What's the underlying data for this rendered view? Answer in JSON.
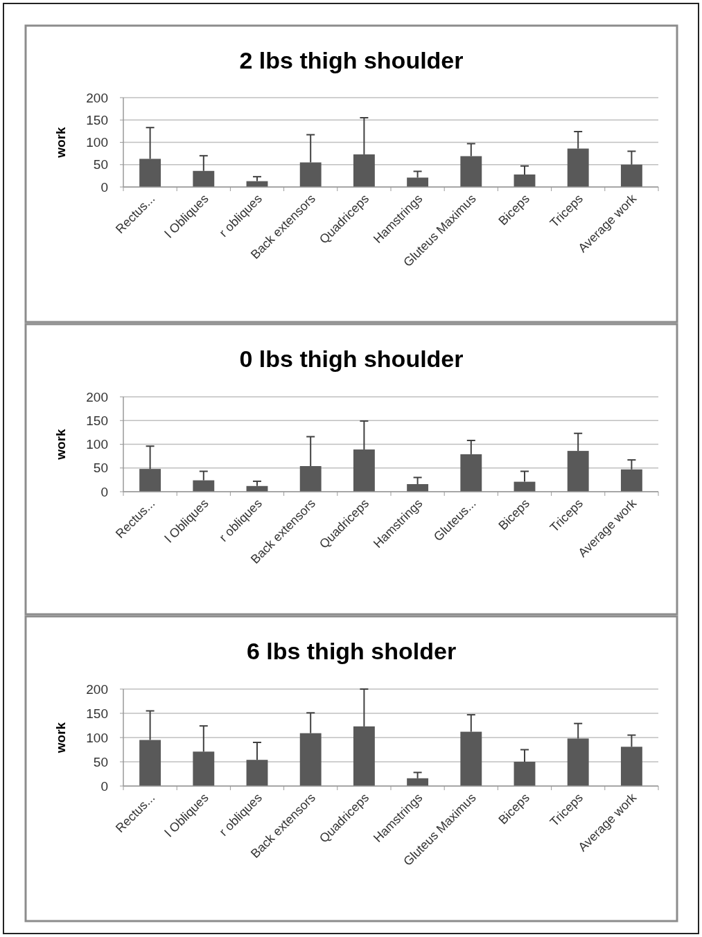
{
  "chart_data": [
    {
      "type": "bar",
      "title": "2 lbs thigh shoulder",
      "ylabel": "work",
      "categories": [
        "Rectus...",
        "l Obliques",
        "r obliques",
        "Back extensors",
        "Quadriceps",
        "Hamstrings",
        "Gluteus Maximus",
        "Biceps",
        "Triceps",
        "Average work"
      ],
      "values": [
        63,
        36,
        13,
        55,
        73,
        21,
        69,
        28,
        86,
        50
      ],
      "errors": [
        [
          63,
          133
        ],
        [
          36,
          70
        ],
        [
          13,
          23
        ],
        [
          55,
          117
        ],
        [
          73,
          155
        ],
        [
          21,
          35
        ],
        [
          69,
          97
        ],
        [
          28,
          47
        ],
        [
          86,
          124
        ],
        [
          50,
          80
        ]
      ],
      "color": "#595959",
      "ylim": [
        0,
        200
      ],
      "yticks": [
        0,
        50,
        100,
        150,
        200
      ],
      "grid": "y"
    },
    {
      "type": "bar",
      "title": "0 lbs thigh shoulder",
      "ylabel": "work",
      "categories": [
        "Rectus...",
        "l Obliques",
        "r obliques",
        "Back extensors",
        "Quadriceps",
        "Hamstrings",
        "Gluteus...",
        "Biceps",
        "Triceps",
        "Average work"
      ],
      "values": [
        48,
        24,
        12,
        54,
        89,
        16,
        79,
        21,
        86,
        47
      ],
      "errors": [
        [
          48,
          96
        ],
        [
          24,
          43
        ],
        [
          12,
          22
        ],
        [
          54,
          116
        ],
        [
          89,
          149
        ],
        [
          16,
          30
        ],
        [
          79,
          108
        ],
        [
          21,
          43
        ],
        [
          86,
          123
        ],
        [
          47,
          67
        ]
      ],
      "color": "#595959",
      "ylim": [
        0,
        200
      ],
      "yticks": [
        0,
        50,
        100,
        150,
        200
      ],
      "grid": "y"
    },
    {
      "type": "bar",
      "title": "6 lbs thigh sholder",
      "ylabel": "work",
      "categories": [
        "Rectus...",
        "l Obliques",
        "r obliques",
        "Back extensors",
        "Quadriceps",
        "Hamstrings",
        "Gluteus Maximus",
        "Biceps",
        "Triceps",
        "Average work"
      ],
      "values": [
        95,
        71,
        54,
        109,
        123,
        16,
        112,
        50,
        98,
        81
      ],
      "errors": [
        [
          95,
          155
        ],
        [
          71,
          124
        ],
        [
          54,
          90
        ],
        [
          109,
          151
        ],
        [
          123,
          200
        ],
        [
          16,
          28
        ],
        [
          112,
          147
        ],
        [
          50,
          75
        ],
        [
          98,
          129
        ],
        [
          81,
          105
        ]
      ],
      "color": "#595959",
      "ylim": [
        0,
        200
      ],
      "yticks": [
        0,
        50,
        100,
        150,
        200
      ],
      "grid": "y"
    }
  ]
}
